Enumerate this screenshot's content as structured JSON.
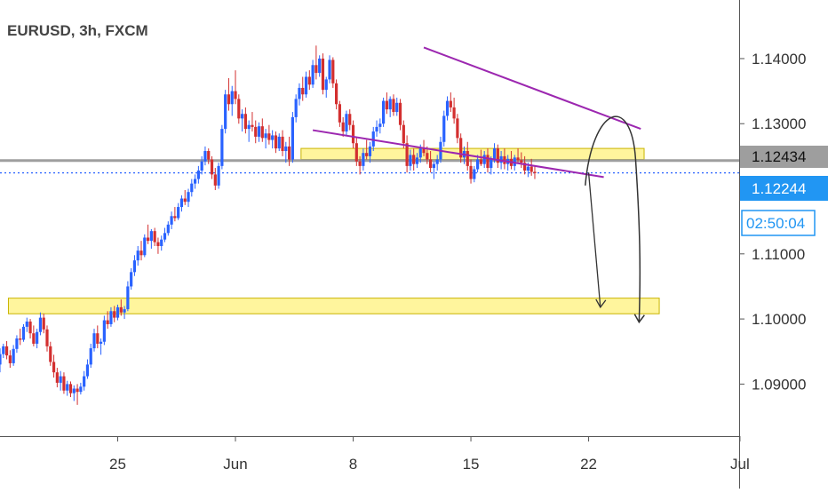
{
  "title": "EURUSD, 3h, FXCM",
  "colors": {
    "up": "#2962ff",
    "down": "#d32f2f",
    "zone_fill": "#fff59d",
    "zone_stroke": "#c9b400",
    "channel": "#9c27b0",
    "current_line": "#9e9e9e",
    "live_line": "#2962ff",
    "arrow": "#333333"
  },
  "price_tags": {
    "current": "1.12434",
    "live": "1.12244",
    "countdown": "02:50:04"
  },
  "chart_data": {
    "type": "candlestick",
    "instrument": "EURUSD",
    "timeframe": "3h",
    "source": "FXCM",
    "x_axis": {
      "ticks": [
        "25",
        "Jun",
        "8",
        "15",
        "22",
        "Jul"
      ],
      "tick_days": [
        25,
        32,
        39,
        46,
        53,
        62
      ]
    },
    "y_axis": {
      "ticks": [
        "1.09000",
        "1.10000",
        "1.11000",
        "1.13000",
        "1.14000"
      ],
      "tick_values": [
        1.09,
        1.1,
        1.11,
        1.13,
        1.14
      ],
      "range": [
        1.082,
        1.149
      ]
    },
    "horizontal_lines": [
      {
        "value": 1.12434,
        "style": "solid"
      },
      {
        "value": 1.12244,
        "style": "dotted"
      }
    ],
    "zones": [
      {
        "from_day": 35.9,
        "to_day": 56.3,
        "low": 1.1245,
        "high": 1.1262
      },
      {
        "from_day": 18.5,
        "to_day": 57.2,
        "low": 1.1008,
        "high": 1.1032
      }
    ],
    "channel_lines": [
      {
        "from": [
          43.2,
          1.1417
        ],
        "to": [
          56.1,
          1.1292
        ]
      },
      {
        "from": [
          36.6,
          1.129
        ],
        "to": [
          53.9,
          1.1218
        ]
      }
    ],
    "projections": [
      {
        "from": [
          53.0,
          1.1225
        ],
        "to": [
          53.7,
          1.1018
        ]
      },
      {
        "from": [
          52.8,
          1.1205
        ],
        "peak": [
          55.0,
          1.13
        ],
        "to": [
          56.0,
          1.0995
        ]
      }
    ],
    "candles": [
      [
        18.0,
        1.093,
        1.0955,
        1.0918,
        1.0946
      ],
      [
        18.2,
        1.0946,
        1.0962,
        1.094,
        1.0958
      ],
      [
        18.4,
        1.0958,
        1.0966,
        1.0938,
        1.0944
      ],
      [
        18.6,
        1.0944,
        1.0952,
        1.0925,
        1.0932
      ],
      [
        18.8,
        1.0932,
        1.096,
        1.0928,
        1.0954
      ],
      [
        19.0,
        1.0954,
        1.0975,
        1.0948,
        1.097
      ],
      [
        19.2,
        1.097,
        1.0985,
        1.096,
        1.0968
      ],
      [
        19.4,
        1.0968,
        1.0992,
        1.0965,
        1.0988
      ],
      [
        19.6,
        1.0988,
        1.1002,
        1.098,
        1.0996
      ],
      [
        19.8,
        1.0996,
        1.1,
        1.097,
        1.0978
      ],
      [
        20.0,
        1.0978,
        1.099,
        1.0958,
        1.0962
      ],
      [
        20.2,
        1.0962,
        1.0985,
        1.0955,
        1.098
      ],
      [
        20.4,
        1.098,
        1.101,
        1.0975,
        1.1002
      ],
      [
        20.6,
        1.1002,
        1.1008,
        1.0978,
        1.0984
      ],
      [
        20.8,
        1.0984,
        1.099,
        1.095,
        1.0958
      ],
      [
        21.0,
        1.0958,
        1.0965,
        1.0928,
        1.0934
      ],
      [
        21.2,
        1.0934,
        1.0945,
        1.091,
        1.0918
      ],
      [
        21.4,
        1.0918,
        1.0925,
        1.0895,
        1.0902
      ],
      [
        21.6,
        1.0902,
        1.092,
        1.089,
        1.0912
      ],
      [
        21.8,
        1.0912,
        1.0918,
        1.0885,
        1.089
      ],
      [
        22.0,
        1.089,
        1.0905,
        1.0882,
        1.09
      ],
      [
        22.2,
        1.09,
        1.0904,
        1.088,
        1.0886
      ],
      [
        22.4,
        1.0886,
        1.0898,
        1.0874,
        1.0893
      ],
      [
        22.6,
        1.0893,
        1.09,
        1.0868,
        1.0888
      ],
      [
        22.8,
        1.0888,
        1.0902,
        1.0884,
        1.0896
      ],
      [
        23.0,
        1.0896,
        1.092,
        1.089,
        1.0912
      ],
      [
        23.2,
        1.0912,
        1.0938,
        1.0908,
        1.093
      ],
      [
        23.4,
        1.093,
        1.0962,
        1.0925,
        1.0955
      ],
      [
        23.6,
        1.0955,
        1.0985,
        1.095,
        1.0978
      ],
      [
        23.8,
        1.0978,
        1.099,
        1.0955,
        1.0962
      ],
      [
        24.0,
        1.0962,
        1.097,
        1.0945,
        1.0965
      ],
      [
        24.2,
        1.0965,
        1.1005,
        1.096,
        1.0998
      ],
      [
        24.4,
        1.0998,
        1.1012,
        1.0985,
        1.0992
      ],
      [
        24.6,
        1.0992,
        1.1018,
        1.0988,
        1.1012
      ],
      [
        24.8,
        1.1012,
        1.102,
        1.0995,
        1.1002
      ],
      [
        25.0,
        1.1002,
        1.1022,
        1.0998,
        1.1018
      ],
      [
        25.2,
        1.1018,
        1.103,
        1.1005,
        1.101
      ],
      [
        25.4,
        1.101,
        1.102,
        1.1,
        1.1015
      ],
      [
        25.6,
        1.1015,
        1.1058,
        1.1012,
        1.105
      ],
      [
        25.8,
        1.105,
        1.1078,
        1.1045,
        1.1072
      ],
      [
        26.0,
        1.1072,
        1.1098,
        1.1066,
        1.109
      ],
      [
        26.2,
        1.109,
        1.1112,
        1.1082,
        1.1105
      ],
      [
        26.4,
        1.1105,
        1.112,
        1.109,
        1.1098
      ],
      [
        26.6,
        1.1098,
        1.113,
        1.1095,
        1.1125
      ],
      [
        26.8,
        1.1125,
        1.1145,
        1.1115,
        1.112
      ],
      [
        27.0,
        1.112,
        1.1138,
        1.1108,
        1.1135
      ],
      [
        27.2,
        1.1135,
        1.114,
        1.1112,
        1.1118
      ],
      [
        27.4,
        1.1118,
        1.1125,
        1.11,
        1.1112
      ],
      [
        27.6,
        1.1112,
        1.1128,
        1.1105,
        1.1122
      ],
      [
        27.8,
        1.1122,
        1.114,
        1.1118,
        1.1132
      ],
      [
        28.0,
        1.1132,
        1.115,
        1.1128,
        1.1145
      ],
      [
        28.2,
        1.1145,
        1.1165,
        1.1138,
        1.1158
      ],
      [
        28.4,
        1.1158,
        1.1172,
        1.115,
        1.1155
      ],
      [
        28.6,
        1.1155,
        1.1178,
        1.1152,
        1.1172
      ],
      [
        28.8,
        1.1172,
        1.119,
        1.1165,
        1.1185
      ],
      [
        29.0,
        1.1185,
        1.1198,
        1.1175,
        1.118
      ],
      [
        29.2,
        1.118,
        1.12,
        1.1172,
        1.1195
      ],
      [
        29.4,
        1.1195,
        1.1215,
        1.1188,
        1.1208
      ],
      [
        29.6,
        1.1208,
        1.1222,
        1.12,
        1.1215
      ],
      [
        29.8,
        1.1215,
        1.1235,
        1.1208,
        1.1228
      ],
      [
        30.0,
        1.1228,
        1.125,
        1.1222,
        1.1242
      ],
      [
        30.2,
        1.1242,
        1.1265,
        1.1236,
        1.1258
      ],
      [
        30.4,
        1.1258,
        1.1262,
        1.1238,
        1.1245
      ],
      [
        30.6,
        1.1245,
        1.125,
        1.1215,
        1.1222
      ],
      [
        30.8,
        1.1222,
        1.1232,
        1.1198,
        1.1205
      ],
      [
        31.0,
        1.1205,
        1.124,
        1.12,
        1.1235
      ],
      [
        31.2,
        1.1235,
        1.1298,
        1.123,
        1.1292
      ],
      [
        31.4,
        1.1292,
        1.1352,
        1.1285,
        1.1345
      ],
      [
        31.6,
        1.1345,
        1.137,
        1.132,
        1.133
      ],
      [
        31.8,
        1.133,
        1.1358,
        1.1312,
        1.135
      ],
      [
        32.0,
        1.135,
        1.1382,
        1.133,
        1.1338
      ],
      [
        32.2,
        1.1338,
        1.1345,
        1.13,
        1.1308
      ],
      [
        32.4,
        1.1308,
        1.1322,
        1.1288,
        1.1315
      ],
      [
        32.6,
        1.1315,
        1.1325,
        1.1285,
        1.1292
      ],
      [
        32.8,
        1.1292,
        1.1305,
        1.1272,
        1.1298
      ],
      [
        33.0,
        1.1298,
        1.1318,
        1.1288,
        1.1295
      ],
      [
        33.2,
        1.1295,
        1.1305,
        1.127,
        1.128
      ],
      [
        33.4,
        1.128,
        1.1302,
        1.1272,
        1.1296
      ],
      [
        33.6,
        1.1296,
        1.1308,
        1.1272,
        1.1278
      ],
      [
        33.8,
        1.1278,
        1.1292,
        1.1262,
        1.1285
      ],
      [
        34.0,
        1.1285,
        1.1298,
        1.1268,
        1.1275
      ],
      [
        34.2,
        1.1275,
        1.129,
        1.1262,
        1.1282
      ],
      [
        34.4,
        1.1282,
        1.1288,
        1.1255,
        1.1262
      ],
      [
        34.6,
        1.1262,
        1.1285,
        1.1258,
        1.128
      ],
      [
        34.8,
        1.128,
        1.129,
        1.125,
        1.1258
      ],
      [
        35.0,
        1.1258,
        1.1272,
        1.124,
        1.1265
      ],
      [
        35.2,
        1.1265,
        1.128,
        1.1235,
        1.1245
      ],
      [
        35.4,
        1.1245,
        1.1318,
        1.124,
        1.131
      ],
      [
        35.6,
        1.131,
        1.1345,
        1.1302,
        1.1338
      ],
      [
        35.8,
        1.1338,
        1.1362,
        1.1328,
        1.1355
      ],
      [
        36.0,
        1.1355,
        1.1372,
        1.1335,
        1.1345
      ],
      [
        36.2,
        1.1345,
        1.138,
        1.134,
        1.1372
      ],
      [
        36.4,
        1.1372,
        1.1382,
        1.1352,
        1.136
      ],
      [
        36.6,
        1.136,
        1.1398,
        1.1355,
        1.139
      ],
      [
        36.8,
        1.139,
        1.142,
        1.1368,
        1.1378
      ],
      [
        37.0,
        1.1378,
        1.1405,
        1.1372,
        1.14
      ],
      [
        37.2,
        1.14,
        1.1408,
        1.1345,
        1.1352
      ],
      [
        37.4,
        1.1352,
        1.1372,
        1.134,
        1.1368
      ],
      [
        37.6,
        1.1368,
        1.1405,
        1.1362,
        1.1398
      ],
      [
        37.8,
        1.1398,
        1.1402,
        1.1355,
        1.1362
      ],
      [
        38.0,
        1.1362,
        1.1368,
        1.1322,
        1.133
      ],
      [
        38.2,
        1.133,
        1.1335,
        1.1295,
        1.1302
      ],
      [
        38.4,
        1.1302,
        1.131,
        1.128,
        1.1288
      ],
      [
        38.6,
        1.1288,
        1.132,
        1.1282,
        1.1315
      ],
      [
        38.8,
        1.1315,
        1.1322,
        1.129,
        1.1298
      ],
      [
        39.0,
        1.1298,
        1.1305,
        1.1262,
        1.127
      ],
      [
        39.2,
        1.127,
        1.1278,
        1.1235,
        1.1242
      ],
      [
        39.4,
        1.1242,
        1.125,
        1.1222,
        1.1235
      ],
      [
        39.6,
        1.1235,
        1.1262,
        1.1228,
        1.1255
      ],
      [
        39.8,
        1.1255,
        1.1275,
        1.1245,
        1.125
      ],
      [
        40.0,
        1.125,
        1.1272,
        1.124,
        1.1265
      ],
      [
        40.2,
        1.1265,
        1.1295,
        1.1258,
        1.1288
      ],
      [
        40.4,
        1.1288,
        1.1305,
        1.128,
        1.1295
      ],
      [
        40.6,
        1.1295,
        1.1308,
        1.1285,
        1.13
      ],
      [
        40.8,
        1.13,
        1.134,
        1.1295,
        1.1335
      ],
      [
        41.0,
        1.1335,
        1.1348,
        1.1315,
        1.1322
      ],
      [
        41.2,
        1.1322,
        1.1342,
        1.131,
        1.1338
      ],
      [
        41.4,
        1.1338,
        1.1345,
        1.1312,
        1.1318
      ],
      [
        41.6,
        1.1318,
        1.134,
        1.1312,
        1.1332
      ],
      [
        41.8,
        1.1332,
        1.1338,
        1.129,
        1.1298
      ],
      [
        42.0,
        1.1298,
        1.1305,
        1.1262,
        1.127
      ],
      [
        42.2,
        1.127,
        1.1282,
        1.1225,
        1.1235
      ],
      [
        42.4,
        1.1235,
        1.126,
        1.1228,
        1.1252
      ],
      [
        42.6,
        1.1252,
        1.1262,
        1.1228,
        1.1238
      ],
      [
        42.8,
        1.1238,
        1.1255,
        1.1232,
        1.1248
      ],
      [
        43.0,
        1.1248,
        1.1268,
        1.124,
        1.1262
      ],
      [
        43.2,
        1.1262,
        1.1275,
        1.125,
        1.1255
      ],
      [
        43.4,
        1.1255,
        1.1265,
        1.1238,
        1.1245
      ],
      [
        43.6,
        1.1245,
        1.1258,
        1.1225,
        1.1232
      ],
      [
        43.8,
        1.1232,
        1.1242,
        1.1215,
        1.1238
      ],
      [
        44.0,
        1.1238,
        1.1252,
        1.1228,
        1.1245
      ],
      [
        44.2,
        1.1245,
        1.128,
        1.124,
        1.1272
      ],
      [
        44.4,
        1.1272,
        1.132,
        1.1265,
        1.1312
      ],
      [
        44.6,
        1.1312,
        1.1342,
        1.1305,
        1.1335
      ],
      [
        44.8,
        1.1335,
        1.1348,
        1.1318,
        1.1325
      ],
      [
        45.0,
        1.1325,
        1.134,
        1.13,
        1.1308
      ],
      [
        45.2,
        1.1308,
        1.1315,
        1.127,
        1.1278
      ],
      [
        45.4,
        1.1278,
        1.1285,
        1.124,
        1.1248
      ],
      [
        45.6,
        1.1248,
        1.1265,
        1.1238,
        1.1258
      ],
      [
        45.8,
        1.1258,
        1.1272,
        1.1228,
        1.1235
      ],
      [
        46.0,
        1.1235,
        1.1245,
        1.1208,
        1.1215
      ],
      [
        46.2,
        1.1215,
        1.1235,
        1.121,
        1.123
      ],
      [
        46.4,
        1.123,
        1.1252,
        1.1225,
        1.1245
      ],
      [
        46.6,
        1.1245,
        1.126,
        1.1235,
        1.1238
      ],
      [
        46.8,
        1.1238,
        1.1258,
        1.1232,
        1.1252
      ],
      [
        47.0,
        1.1252,
        1.1262,
        1.1225,
        1.1232
      ],
      [
        47.2,
        1.1232,
        1.125,
        1.1222,
        1.1245
      ],
      [
        47.4,
        1.1245,
        1.127,
        1.124,
        1.1262
      ],
      [
        47.6,
        1.1262,
        1.1268,
        1.1232,
        1.124
      ],
      [
        47.8,
        1.124,
        1.1258,
        1.123,
        1.125
      ],
      [
        48.0,
        1.125,
        1.1262,
        1.123,
        1.1238
      ],
      [
        48.2,
        1.1238,
        1.1252,
        1.1228,
        1.1246
      ],
      [
        48.4,
        1.1246,
        1.1258,
        1.123,
        1.1235
      ],
      [
        48.6,
        1.1235,
        1.1252,
        1.1228,
        1.1248
      ],
      [
        48.8,
        1.1248,
        1.1262,
        1.124,
        1.1244
      ],
      [
        49.0,
        1.1244,
        1.1256,
        1.1232,
        1.124
      ],
      [
        49.2,
        1.124,
        1.125,
        1.1222,
        1.1228
      ],
      [
        49.4,
        1.1228,
        1.124,
        1.1218,
        1.1234
      ],
      [
        49.6,
        1.1234,
        1.1246,
        1.122,
        1.1226
      ],
      [
        49.8,
        1.1226,
        1.1236,
        1.1215,
        1.1224
      ]
    ]
  }
}
